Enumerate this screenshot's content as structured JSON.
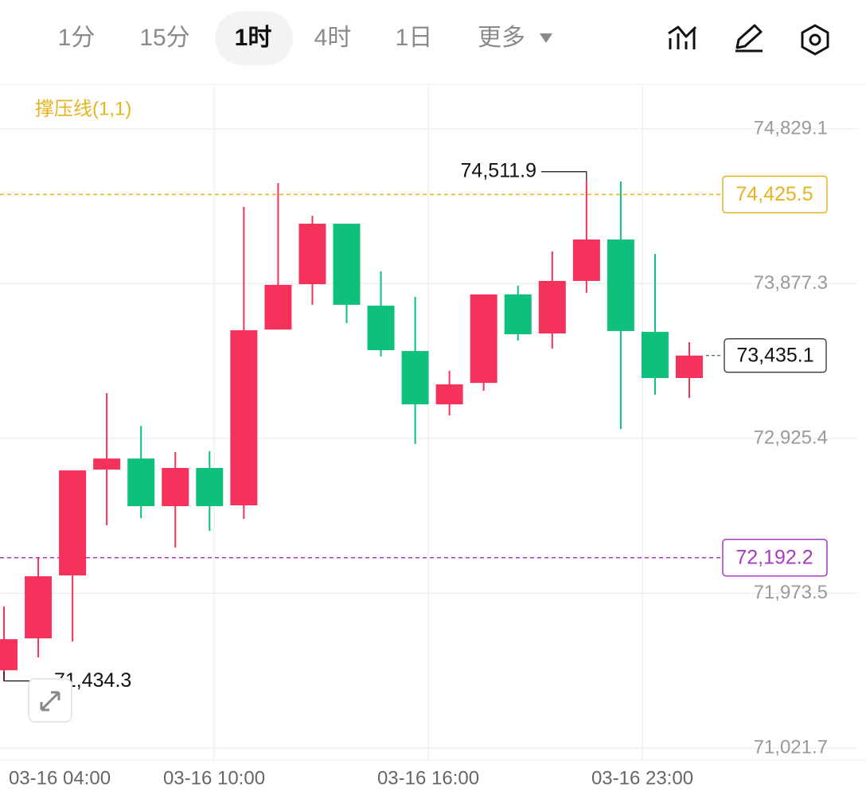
{
  "toolbar": {
    "tabs": [
      "1分",
      "15分",
      "1时",
      "4时",
      "1日",
      "更多"
    ],
    "active": 2
  },
  "chart_data": {
    "type": "candlestick",
    "indicator": "撑压线(1,1)",
    "open": [
      71500,
      71696,
      72083,
      72734,
      72802,
      72509,
      72744,
      72514,
      73595,
      73874,
      74246,
      73742,
      73463,
      73135,
      73267,
      73811,
      73571,
      73894,
      74149,
      73581,
      73297
    ],
    "high": [
      71892,
      72195,
      72729,
      73204,
      73003,
      72842,
      72847,
      74349,
      74496,
      74295,
      74246,
      73953,
      73796,
      73341,
      73811,
      73865,
      74075,
      74511.9,
      74506,
      74060,
      73517
    ],
    "low": [
      71434.3,
      71579,
      71677,
      72391,
      72435,
      72254,
      72357,
      72430,
      73595,
      73747,
      73635,
      73429,
      72891,
      73067,
      73219,
      73527,
      73478,
      73821,
      72984,
      73194,
      73174
    ],
    "close": [
      71691,
      72078,
      72729,
      72802,
      72509,
      72744,
      72509,
      73591,
      73870,
      74246,
      73747,
      73468,
      73135,
      73258,
      73811,
      73566,
      73894,
      74149,
      73586,
      73297,
      73435.1
    ],
    "up_color": "#f4325c",
    "down_color": "#0fbf7c",
    "ylim": [
      70948,
      75093
    ],
    "yticks": [
      {
        "value": 71021.7,
        "label": "71,021.7"
      },
      {
        "value": 71973.5,
        "label": "71,973.5"
      },
      {
        "value": 72925.4,
        "label": "72,925.4"
      },
      {
        "value": 73877.3,
        "label": "73,877.3"
      },
      {
        "value": 74829.1,
        "label": "74,829.1"
      }
    ],
    "x_labels": [
      "03-16 04:00",
      "03-16 10:00",
      "03-16 16:00",
      "03-16 23:00"
    ],
    "grid": true,
    "max_label": {
      "value": 74511.9,
      "label": "74,511.9"
    },
    "min_label": {
      "value": 71434.3,
      "label": "71,434.3"
    },
    "levels": [
      {
        "value": 74425.5,
        "label": "74,425.5",
        "color": "#e6b422"
      },
      {
        "value": 72192.2,
        "label": "72,192.2",
        "color": "#a63cc0"
      }
    ],
    "last_price": {
      "value": 73435.1,
      "label": "73,435.1"
    }
  }
}
